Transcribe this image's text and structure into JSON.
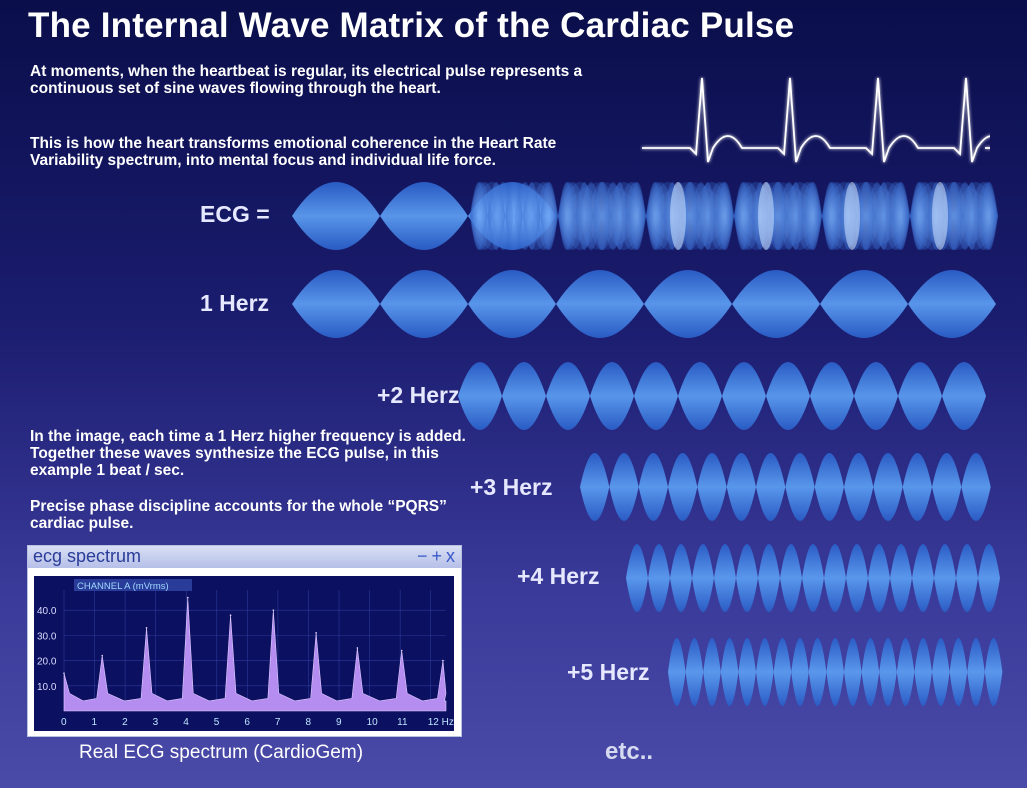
{
  "title": "The Internal Wave Matrix of the Cardiac Pulse",
  "paragraphs": {
    "intro1": "At moments, when the heartbeat is regular, its electrical pulse represents a continuous set of sine waves flowing through the heart.",
    "intro2": "This is how the heart transforms emotional coherence in the Heart Rate Variability spectrum, into mental focus and individual life force.",
    "explain1": "In the image, each time a 1 Herz higher frequency is added. Together these waves synthesize the ECG pulse, in this example 1 beat / sec.",
    "explain2": "Precise phase discipline accounts for the whole “PQRS” cardiac pulse."
  },
  "rows": [
    {
      "label": "ECG =",
      "frequency_hz": 0
    },
    {
      "label": "1 Herz",
      "frequency_hz": 1
    },
    {
      "label": "+2 Herz",
      "frequency_hz": 2
    },
    {
      "label": "+3 Herz",
      "frequency_hz": 3
    },
    {
      "label": "+4 Herz",
      "frequency_hz": 4
    },
    {
      "label": "+5 Herz",
      "frequency_hz": 5
    }
  ],
  "etc": "etc..",
  "spectrum_window": {
    "title": "ecg spectrum",
    "controls": [
      "−",
      "+",
      "x"
    ],
    "channel_label": "CHANNEL A (mVrms)",
    "caption": "Real ECG spectrum (CardioGem)"
  },
  "chart_data": {
    "type": "area",
    "title": "",
    "ylabel": "CHANNEL A (mVrms)",
    "xlabel": "Hz",
    "ylim": [
      0,
      48
    ],
    "xlim": [
      0,
      12.5
    ],
    "y_ticks": [
      "10.0",
      "20.0",
      "30.0",
      "40.0"
    ],
    "x_ticks": [
      "0",
      "1",
      "2",
      "3",
      "4",
      "5",
      "6",
      "7",
      "8",
      "9",
      "10",
      "11",
      "12 Hz"
    ],
    "peaks": [
      {
        "x": 0.0,
        "y": 15
      },
      {
        "x": 1.25,
        "y": 22
      },
      {
        "x": 2.7,
        "y": 33
      },
      {
        "x": 4.05,
        "y": 45
      },
      {
        "x": 5.45,
        "y": 38
      },
      {
        "x": 6.85,
        "y": 40
      },
      {
        "x": 8.25,
        "y": 31
      },
      {
        "x": 9.6,
        "y": 25
      },
      {
        "x": 11.05,
        "y": 24
      },
      {
        "x": 12.4,
        "y": 20
      }
    ],
    "baseline": 4,
    "fill_color": "#b58cf0"
  },
  "colors": {
    "wave": "#3f7fe0",
    "wave_highlight": "#8cc0ff",
    "label": "#e6e8ff"
  }
}
